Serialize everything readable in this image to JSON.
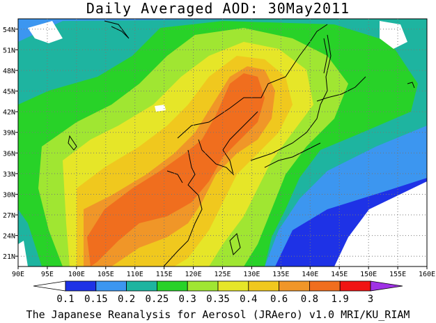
{
  "title": "Daily Averaged AOD: 30May2011",
  "footer": "The Japanese Reanalysis for Aerosol (JRAero) v1.0 MRI/KU_RIAM",
  "map": {
    "lon_range": [
      90,
      160
    ],
    "lat_range": [
      19.5,
      55.5
    ],
    "lon_ticks": [
      "90E",
      "95E",
      "100E",
      "105E",
      "110E",
      "115E",
      "120E",
      "125E",
      "130E",
      "135E",
      "140E",
      "145E",
      "150E",
      "155E",
      "160E"
    ],
    "lat_ticks": [
      "54N",
      "51N",
      "48N",
      "45N",
      "42N",
      "39N",
      "36N",
      "33N",
      "30N",
      "27N",
      "24N",
      "21N"
    ]
  },
  "colorbar": {
    "labels": [
      "0.1",
      "0.15",
      "0.2",
      "0.25",
      "0.3",
      "0.35",
      "0.4",
      "0.6",
      "0.8",
      "1.9",
      "3"
    ],
    "colors": [
      "#ffffff",
      "#1e32e6",
      "#3c96f0",
      "#1eb4a0",
      "#28d228",
      "#a0e632",
      "#e6e628",
      "#f0c81e",
      "#f09628",
      "#f06e1e",
      "#f01414",
      "#a032e6"
    ]
  }
}
